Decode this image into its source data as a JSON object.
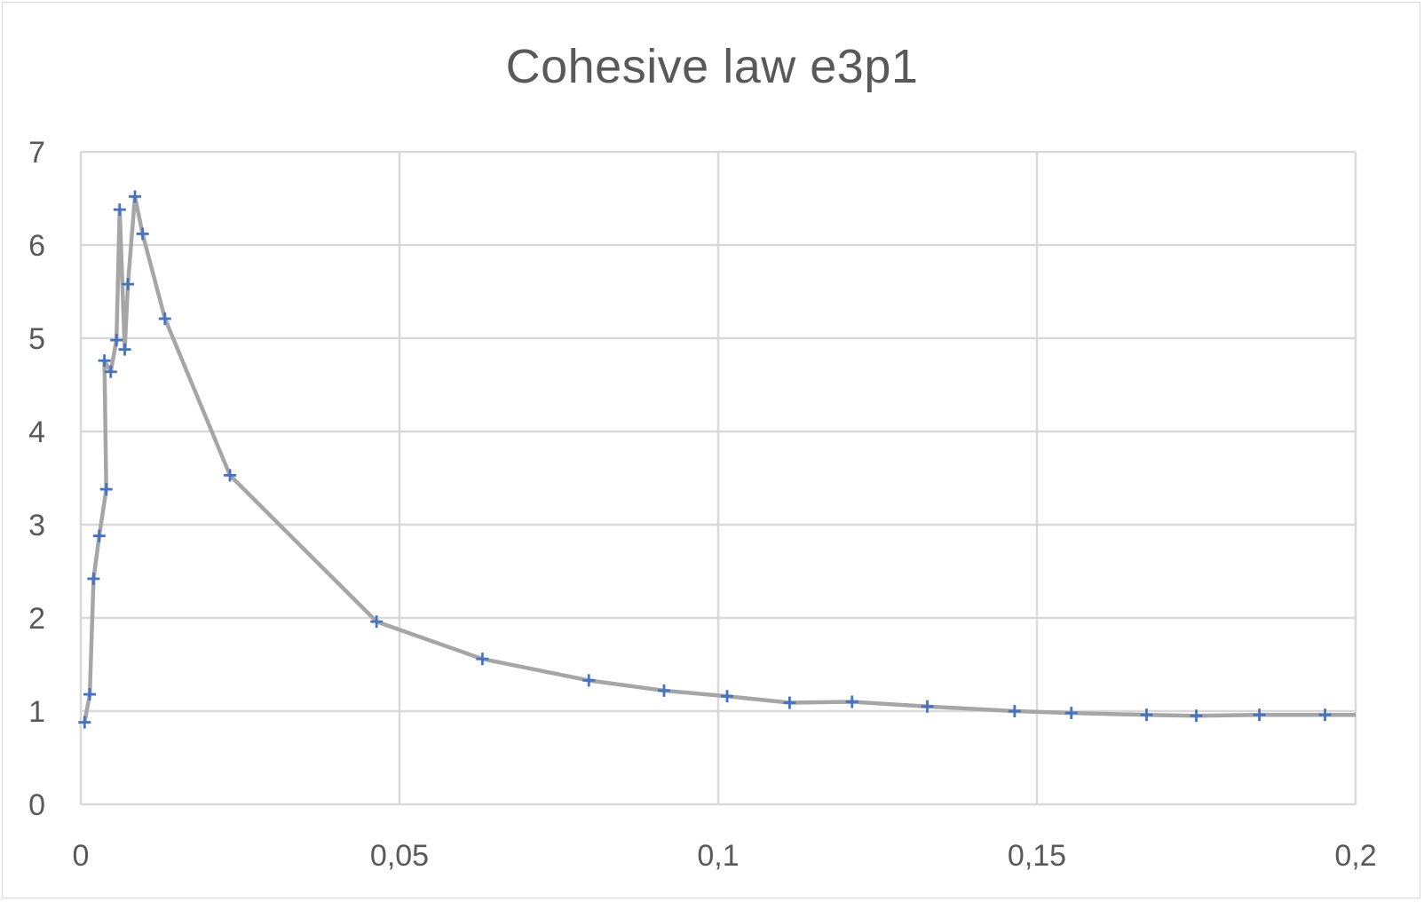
{
  "chart_data": {
    "type": "scatter",
    "title": "Cohesive law e3p1",
    "xlabel": "",
    "ylabel": "",
    "xlim": [
      0,
      0.2
    ],
    "ylim": [
      0,
      7
    ],
    "x_ticks": [
      "0",
      "0,05",
      "0,1",
      "0,15",
      "0,2"
    ],
    "x_tick_values": [
      0,
      0.05,
      0.1,
      0.15,
      0.2
    ],
    "y_ticks": [
      "0",
      "1",
      "2",
      "3",
      "4",
      "5",
      "6",
      "7"
    ],
    "y_tick_values": [
      0,
      1,
      2,
      3,
      4,
      5,
      6,
      7
    ],
    "grid": true,
    "legend": "none",
    "line_color": "#a6a6a6",
    "marker_color": "#4472c4",
    "marker": "plus",
    "series": [
      {
        "x": [
          0.0006,
          0.0014,
          0.002,
          0.0029,
          0.004,
          0.0037,
          0.0047,
          0.0056,
          0.0061,
          0.0069,
          0.0074,
          0.0085,
          0.0097,
          0.0132,
          0.0234,
          0.0464,
          0.063,
          0.0797,
          0.0915,
          0.1014,
          0.1112,
          0.121,
          0.1328,
          0.1465,
          0.1554,
          0.1672,
          0.175,
          0.1849,
          0.1952,
          0.2
        ],
        "y": [
          0.88,
          1.18,
          2.42,
          2.88,
          3.38,
          4.76,
          4.64,
          4.98,
          6.38,
          4.88,
          5.58,
          6.52,
          6.12,
          5.21,
          3.53,
          1.96,
          1.56,
          1.33,
          1.22,
          1.16,
          1.09,
          1.1,
          1.05,
          1.0,
          0.98,
          0.96,
          0.95,
          0.96,
          0.96,
          0.96
        ],
        "markers": [
          true,
          true,
          true,
          true,
          true,
          true,
          true,
          true,
          true,
          true,
          true,
          true,
          true,
          true,
          true,
          true,
          true,
          true,
          true,
          true,
          true,
          true,
          true,
          true,
          true,
          true,
          true,
          true,
          true,
          false
        ]
      }
    ]
  }
}
